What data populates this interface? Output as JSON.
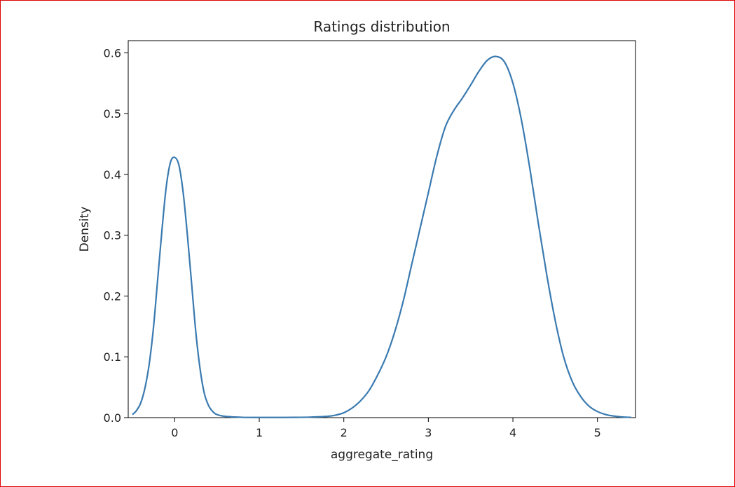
{
  "frame": {
    "border_color": "#e00000"
  },
  "chart_data": {
    "type": "line",
    "title": "Ratings distribution",
    "xlabel": "aggregate_rating",
    "ylabel": "Density",
    "xlim": [
      -0.55,
      5.45
    ],
    "ylim": [
      0,
      0.62
    ],
    "xticks": [
      0,
      1,
      2,
      3,
      4,
      5
    ],
    "yticks": [
      0.0,
      0.1,
      0.2,
      0.3,
      0.4,
      0.5,
      0.6
    ],
    "ytick_labels": [
      "0.0",
      "0.1",
      "0.2",
      "0.3",
      "0.4",
      "0.5",
      "0.6"
    ],
    "grid": false,
    "series": [
      {
        "color": "#3a7ab0",
        "x": [
          -0.5,
          -0.45,
          -0.4,
          -0.35,
          -0.3,
          -0.25,
          -0.2,
          -0.15,
          -0.1,
          -0.05,
          0.0,
          0.05,
          0.1,
          0.15,
          0.2,
          0.25,
          0.3,
          0.35,
          0.4,
          0.45,
          0.5,
          0.6,
          0.8,
          1.0,
          1.2,
          1.4,
          1.6,
          1.8,
          1.9,
          2.0,
          2.1,
          2.2,
          2.3,
          2.4,
          2.5,
          2.6,
          2.7,
          2.8,
          2.9,
          3.0,
          3.1,
          3.2,
          3.3,
          3.4,
          3.5,
          3.6,
          3.7,
          3.8,
          3.9,
          4.0,
          4.1,
          4.2,
          4.3,
          4.4,
          4.5,
          4.6,
          4.7,
          4.8,
          4.9,
          5.0,
          5.1,
          5.2,
          5.3,
          5.4
        ],
        "y": [
          0.005,
          0.012,
          0.025,
          0.05,
          0.09,
          0.15,
          0.23,
          0.31,
          0.38,
          0.42,
          0.428,
          0.415,
          0.37,
          0.3,
          0.22,
          0.14,
          0.08,
          0.04,
          0.02,
          0.01,
          0.005,
          0.002,
          0.0005,
          0.0003,
          0.0003,
          0.0004,
          0.0008,
          0.002,
          0.004,
          0.008,
          0.016,
          0.028,
          0.045,
          0.07,
          0.1,
          0.14,
          0.19,
          0.25,
          0.31,
          0.37,
          0.43,
          0.478,
          0.505,
          0.525,
          0.547,
          0.57,
          0.588,
          0.594,
          0.585,
          0.55,
          0.49,
          0.41,
          0.32,
          0.235,
          0.16,
          0.1,
          0.06,
          0.035,
          0.019,
          0.01,
          0.005,
          0.0025,
          0.001,
          0.0004
        ]
      }
    ]
  }
}
